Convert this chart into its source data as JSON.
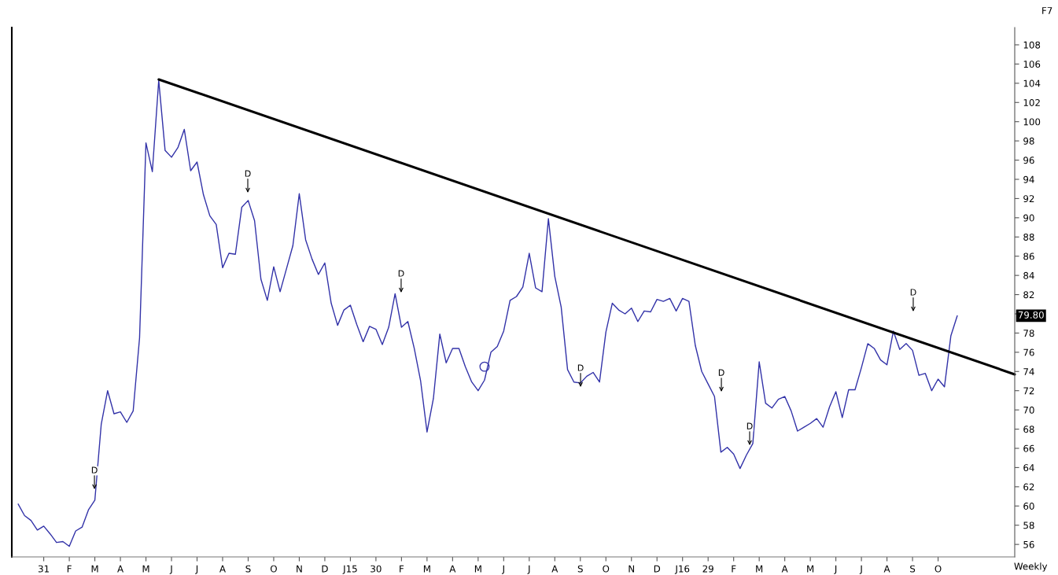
{
  "chart_data": {
    "type": "line",
    "categories": [
      null,
      null,
      null,
      null,
      "31",
      null,
      null,
      null,
      "F",
      null,
      null,
      null,
      "M",
      null,
      null,
      null,
      "A",
      null,
      null,
      null,
      "M",
      null,
      null,
      null,
      "J",
      null,
      null,
      null,
      "J",
      null,
      null,
      null,
      "A",
      null,
      null,
      null,
      "S",
      null,
      null,
      null,
      "O",
      null,
      null,
      null,
      "N",
      null,
      null,
      null,
      "D",
      null,
      null,
      null,
      "J15",
      null,
      null,
      null,
      "30",
      null,
      null,
      null,
      "F",
      null,
      null,
      null,
      "M",
      null,
      null,
      null,
      "A",
      null,
      null,
      null,
      "M",
      null,
      null,
      null,
      "J",
      null,
      null,
      null,
      "J",
      null,
      null,
      null,
      "A",
      null,
      null,
      null,
      "S",
      null,
      null,
      null,
      "O",
      null,
      null,
      null,
      "N",
      null,
      null,
      null,
      "D",
      null,
      null,
      null,
      "J16",
      null,
      null,
      null,
      "29",
      null,
      null,
      null,
      "F",
      null,
      null,
      null,
      "M",
      null,
      null,
      null,
      "A",
      null,
      null,
      null,
      "M",
      null,
      null,
      null,
      "J",
      null,
      null,
      null,
      "J",
      null,
      null,
      null,
      "A",
      null,
      null,
      null,
      "S",
      null,
      null,
      null,
      "O",
      null,
      null,
      null,
      null,
      null,
      null,
      null,
      null,
      null,
      null,
      null,
      null
    ],
    "series": [
      {
        "type": "line",
        "color": "#3232a8",
        "values": [
          60.2,
          59.0,
          58.5,
          57.5,
          57.9,
          57.1,
          56.2,
          56.3,
          55.8,
          57.4,
          57.8,
          59.6,
          60.6,
          68.5,
          72.0,
          69.6,
          69.8,
          68.7,
          69.9,
          77.5,
          97.8,
          94.8,
          104.3,
          97.0,
          96.3,
          97.3,
          99.2,
          94.9,
          95.8,
          92.4,
          90.2,
          89.3,
          84.8,
          86.3,
          86.2,
          91.1,
          91.8,
          89.7,
          83.6,
          81.4,
          84.9,
          82.3,
          84.7,
          87.1,
          92.5,
          87.7,
          85.7,
          84.1,
          85.3,
          81.1,
          78.8,
          80.4,
          80.9,
          78.9,
          77.1,
          78.7,
          78.4,
          76.8,
          78.6,
          82.1,
          78.6,
          79.2,
          76.4,
          73.0,
          67.7,
          71.2,
          77.9,
          74.9,
          76.4,
          76.4,
          74.5,
          72.9,
          72.0,
          73.1,
          76.0,
          76.6,
          78.2,
          81.4,
          81.8,
          82.8,
          86.3,
          82.7,
          82.3,
          89.9,
          83.9,
          80.7,
          74.2,
          72.9,
          72.8,
          73.5,
          73.9,
          72.9,
          78.1,
          81.1,
          80.4,
          80.0,
          80.6,
          79.2,
          80.3,
          80.2,
          81.5,
          81.3,
          81.6,
          80.3,
          81.6,
          81.3,
          76.7,
          74.0,
          72.7,
          71.4,
          65.6,
          66.1,
          65.4,
          63.9,
          65.3,
          66.5,
          75.0,
          70.7,
          70.2,
          71.1,
          71.4,
          69.9,
          67.8,
          68.2,
          68.6,
          69.1,
          68.2,
          70.3,
          71.9,
          69.2,
          72.1,
          72.1,
          74.4,
          76.9,
          76.4,
          75.2,
          74.7,
          78.2,
          76.3,
          76.9,
          76.2,
          73.6,
          73.8,
          72.0,
          73.2,
          72.4,
          77.7,
          79.8,
          null,
          null,
          null,
          null,
          null,
          null,
          null,
          null,
          null
        ]
      },
      {
        "type": "line",
        "values": [
          null,
          null,
          null,
          null,
          null,
          null,
          null,
          null,
          null,
          null,
          null,
          null,
          null,
          null,
          null,
          null,
          null,
          null,
          null,
          null,
          null,
          null,
          104.4,
          null,
          null,
          null,
          null,
          null,
          null,
          null,
          null,
          null,
          null,
          null,
          null,
          null,
          null,
          null,
          null,
          null,
          null,
          null,
          null,
          null,
          null,
          null,
          null,
          null,
          null,
          null,
          null,
          null,
          null,
          null,
          null,
          null,
          null,
          null,
          null,
          null,
          null,
          null,
          null,
          null,
          null,
          null,
          null,
          null,
          null,
          null,
          null,
          null,
          null,
          null,
          null,
          null,
          null,
          null,
          null,
          null,
          null,
          null,
          null,
          null,
          null,
          null,
          null,
          null,
          null,
          null,
          null,
          null,
          null,
          null,
          null,
          null,
          null,
          null,
          null,
          null,
          null,
          null,
          null,
          null,
          null,
          null,
          null,
          null,
          null,
          null,
          null,
          null,
          null,
          null,
          null,
          null,
          null,
          null,
          null,
          null,
          null,
          null,
          null,
          null,
          null,
          null,
          null,
          null,
          null,
          null,
          null,
          null,
          null,
          null,
          null,
          null,
          null,
          null,
          null,
          null,
          null,
          null,
          null,
          null,
          null,
          null,
          null,
          null,
          null,
          null,
          null,
          null,
          null,
          null,
          null,
          null,
          73.7
        ],
        "color": "#000000"
      },
      {
        "type": "scatter",
        "values": [
          null,
          null,
          null,
          null,
          null,
          null,
          null,
          null,
          null,
          null,
          null,
          null,
          null,
          null,
          null,
          null,
          null,
          null,
          null,
          null,
          null,
          null,
          null,
          null,
          null,
          null,
          null,
          null,
          null,
          null,
          null,
          null,
          null,
          null,
          null,
          null,
          null,
          null,
          null,
          null,
          null,
          null,
          null,
          null,
          null,
          null,
          null,
          null,
          null,
          null,
          null,
          null,
          null,
          null,
          null,
          null,
          null,
          null,
          null,
          null,
          null,
          null,
          null,
          null,
          null,
          null,
          null,
          null,
          null,
          null,
          null,
          null,
          null,
          74.5,
          null,
          null,
          null,
          null,
          null,
          null,
          null,
          null,
          null,
          null,
          null,
          null,
          null,
          null,
          null,
          null,
          null,
          null,
          null,
          null,
          null,
          null,
          null,
          null,
          null,
          null,
          null,
          null,
          null,
          null,
          null,
          null,
          null,
          null,
          null,
          null,
          null,
          null,
          null,
          null,
          null,
          null,
          null,
          null,
          null,
          null,
          null,
          null,
          null,
          null,
          null,
          null,
          null,
          null,
          null,
          null,
          null,
          null,
          null,
          null,
          null,
          null,
          null,
          null,
          null,
          null,
          null,
          null,
          null,
          null,
          null,
          null,
          null,
          null,
          null,
          null,
          null,
          null,
          null,
          null,
          null,
          null,
          null
        ],
        "color": "#3232a8",
        "marker": "circle"
      }
    ],
    "ylim": [
      54.7,
      109.8
    ],
    "yticks": [
      56,
      58,
      60,
      62,
      64,
      66,
      68,
      70,
      72,
      74,
      76,
      78,
      {
        "value": 80,
        "label": null
      },
      82,
      84,
      86,
      88,
      90,
      92,
      94,
      96,
      98,
      100,
      102,
      104,
      106,
      108
    ],
    "annotations": [
      "F7",
      "Weekly",
      "79.80",
      "D",
      "D",
      "D",
      "D",
      "D",
      "D",
      "D"
    ],
    "grid": false,
    "legend": false
  }
}
